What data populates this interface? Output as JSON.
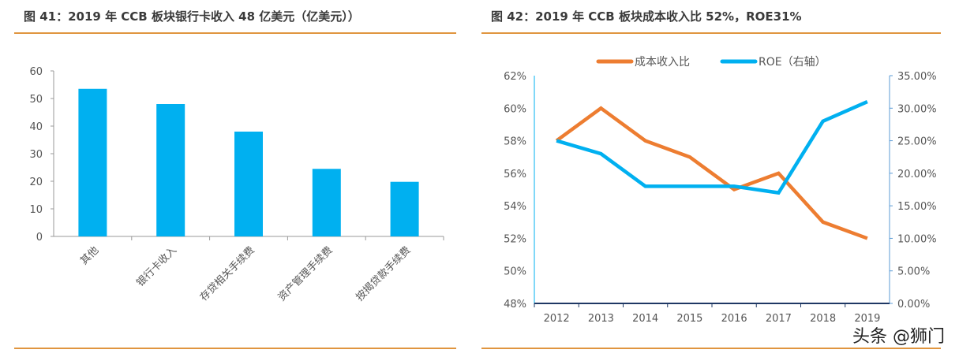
{
  "colors": {
    "bar": "#00b0f0",
    "cost": "#ed7d31",
    "roe": "#00b0f0",
    "rule": "#e0953f"
  },
  "watermark": "头条 @狮门",
  "chart_data": [
    {
      "type": "bar",
      "title": "图 41：2019 年 CCB 板块银行卡收入 48 亿美元（亿美元））",
      "categories": [
        "其他",
        "银行卡收入",
        "存贷相关手续费",
        "资产管理手续费",
        "按揭贷款手续费"
      ],
      "values": [
        53.5,
        48,
        38,
        24.5,
        19.8
      ],
      "ylim": [
        0,
        60
      ],
      "yticks": [
        "0",
        "10",
        "20",
        "30",
        "40",
        "50",
        "60"
      ],
      "grid": false
    },
    {
      "type": "line",
      "title": "图 42：2019 年 CCB 板块成本收入比 52%，ROE31%",
      "categories": [
        "2012",
        "2013",
        "2014",
        "2015",
        "2016",
        "2017",
        "2018",
        "2019"
      ],
      "series": [
        {
          "name": "成本收入比",
          "axis": "left",
          "values": [
            58,
            60,
            58,
            57,
            55,
            56,
            53,
            52
          ]
        },
        {
          "name": "ROE（右轴）",
          "axis": "right",
          "values": [
            25,
            23,
            18,
            18,
            18,
            17,
            28,
            31
          ]
        }
      ],
      "ylim": [
        48,
        62
      ],
      "yticks": [
        "48%",
        "50%",
        "52%",
        "54%",
        "56%",
        "58%",
        "60%",
        "62%"
      ],
      "y2lim": [
        0,
        35
      ],
      "y2ticks": [
        "0.00%",
        "5.00%",
        "10.00%",
        "15.00%",
        "20.00%",
        "25.00%",
        "30.00%",
        "35.00%"
      ],
      "legend": "top",
      "grid": false
    }
  ]
}
